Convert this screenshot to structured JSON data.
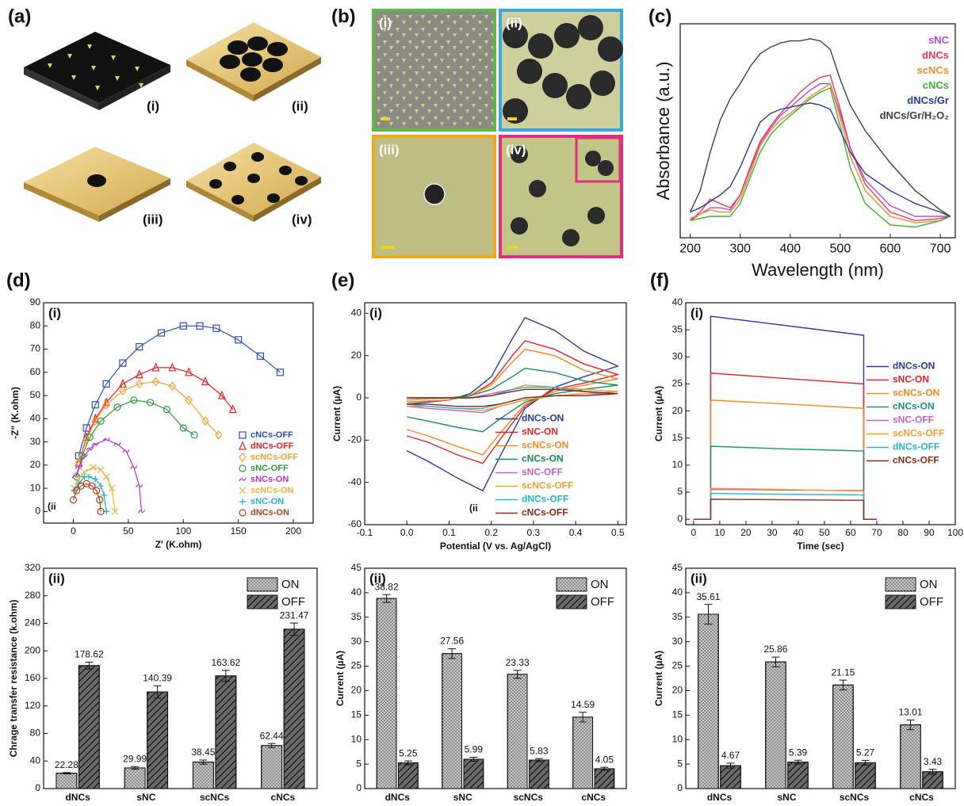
{
  "figure": {
    "a": {
      "label": "(a)",
      "items": [
        "(i)",
        "(ii)",
        "(iii)",
        "(iv)"
      ]
    },
    "b": {
      "label": "(b)",
      "items": [
        "(i)",
        "(ii)",
        "(iii)",
        "(iv)"
      ]
    }
  },
  "chart_data": [
    {
      "type": "line",
      "panel_label": "(c)",
      "xlabel": "Wavelength (nm)",
      "ylabel": "Absorbance (a.u.)",
      "x": [
        200,
        220,
        240,
        260,
        280,
        300,
        320,
        340,
        360,
        380,
        400,
        420,
        440,
        460,
        480,
        500,
        520,
        550,
        600,
        650,
        700,
        720
      ],
      "xlim": [
        180,
        730
      ],
      "xticks": [
        200,
        300,
        400,
        500,
        600,
        700
      ],
      "ylim": [
        0,
        1
      ],
      "legend": "upper right",
      "series": [
        {
          "name": "sNC",
          "color": "#b050c8",
          "values": [
            0.08,
            0.11,
            0.14,
            0.14,
            0.13,
            0.2,
            0.32,
            0.44,
            0.51,
            0.57,
            0.61,
            0.65,
            0.69,
            0.72,
            0.72,
            0.58,
            0.42,
            0.27,
            0.15,
            0.1,
            0.1,
            0.1
          ]
        },
        {
          "name": "dNCs",
          "color": "#f03a50",
          "values": [
            0.08,
            0.12,
            0.18,
            0.16,
            0.14,
            0.2,
            0.33,
            0.45,
            0.52,
            0.58,
            0.63,
            0.68,
            0.72,
            0.75,
            0.76,
            0.6,
            0.42,
            0.25,
            0.12,
            0.08,
            0.09,
            0.1
          ]
        },
        {
          "name": "scNCs",
          "color": "#f58a30",
          "values": [
            0.09,
            0.11,
            0.13,
            0.12,
            0.12,
            0.18,
            0.3,
            0.43,
            0.5,
            0.55,
            0.58,
            0.62,
            0.66,
            0.69,
            0.72,
            0.56,
            0.38,
            0.22,
            0.1,
            0.07,
            0.08,
            0.1
          ]
        },
        {
          "name": "cNCs",
          "color": "#40b030",
          "values": [
            0.08,
            0.09,
            0.1,
            0.1,
            0.1,
            0.16,
            0.28,
            0.4,
            0.48,
            0.53,
            0.57,
            0.61,
            0.65,
            0.68,
            0.7,
            0.52,
            0.33,
            0.16,
            0.06,
            0.05,
            0.08,
            0.1
          ]
        },
        {
          "name": "dNCs/Gr",
          "color": "#2a3aa0",
          "values": [
            0.12,
            0.14,
            0.17,
            0.2,
            0.24,
            0.33,
            0.44,
            0.54,
            0.58,
            0.6,
            0.61,
            0.62,
            0.63,
            0.62,
            0.6,
            0.5,
            0.4,
            0.3,
            0.22,
            0.16,
            0.12,
            0.1
          ]
        },
        {
          "name": "dNCs/Gr/H₂O₂",
          "color": "#404040",
          "values": [
            0.12,
            0.22,
            0.4,
            0.55,
            0.65,
            0.72,
            0.8,
            0.86,
            0.89,
            0.91,
            0.92,
            0.92,
            0.93,
            0.92,
            0.88,
            0.74,
            0.62,
            0.5,
            0.35,
            0.22,
            0.13,
            0.1
          ]
        }
      ]
    },
    {
      "type": "scatter",
      "panel_label": "(d)",
      "subpanel_label": "(i)",
      "annotation": "(ii",
      "xlabel": "Z' (K.ohm)",
      "ylabel": "-Z\" (K.ohm)",
      "xlim": [
        -27,
        218
      ],
      "xticks": [
        0,
        50,
        100,
        150,
        200
      ],
      "ylim": [
        -5,
        90
      ],
      "yticks": [
        0,
        10,
        20,
        30,
        40,
        50,
        60,
        70,
        80,
        90
      ],
      "legend": "lower right",
      "series": [
        {
          "name": "cNCs-OFF",
          "color": "#2e4bbd",
          "marker": "square",
          "x": [
            5,
            12,
            20,
            30,
            45,
            60,
            80,
            100,
            115,
            130,
            150,
            170,
            188
          ],
          "values": [
            24,
            36,
            46,
            55,
            64,
            71,
            77,
            80,
            80,
            79,
            74,
            67,
            60
          ]
        },
        {
          "name": "dNCs-OFF",
          "color": "#e8202a",
          "marker": "triangle",
          "x": [
            5,
            12,
            20,
            30,
            45,
            60,
            75,
            90,
            105,
            120,
            135,
            145
          ],
          "values": [
            21,
            32,
            40,
            47,
            55,
            59,
            62,
            62,
            60,
            56,
            50,
            44
          ]
        },
        {
          "name": "scNCs-OFF",
          "color": "#f5a030",
          "marker": "diamond",
          "x": [
            5,
            12,
            20,
            30,
            45,
            60,
            75,
            90,
            105,
            120,
            132
          ],
          "values": [
            21,
            31,
            39,
            46,
            52,
            55,
            56,
            54,
            48,
            39,
            33
          ]
        },
        {
          "name": "sNC-OFF",
          "color": "#2a9a3a",
          "marker": "circle",
          "x": [
            3,
            8,
            15,
            25,
            40,
            55,
            70,
            85,
            100,
            110
          ],
          "values": [
            15,
            24,
            32,
            39,
            45,
            48,
            47,
            44,
            36,
            33
          ]
        },
        {
          "name": "sNCs-ON",
          "color": "#c030c0",
          "marker": "cross",
          "x": [
            2,
            5,
            10,
            15,
            20,
            30,
            40,
            48,
            55,
            60,
            62
          ],
          "values": [
            15,
            19,
            24,
            27,
            29,
            31,
            29,
            26,
            19,
            11,
            0
          ]
        },
        {
          "name": "scNCs-ON",
          "color": "#f0b040",
          "marker": "x",
          "x": [
            1,
            5,
            10,
            18,
            25,
            30,
            35,
            38
          ],
          "values": [
            10,
            14,
            17,
            19,
            18,
            15,
            10,
            0
          ]
        },
        {
          "name": "sNC-ON",
          "color": "#20b0c8",
          "marker": "plus",
          "x": [
            1,
            5,
            10,
            14,
            20,
            25,
            28,
            30
          ],
          "values": [
            9,
            12,
            15,
            15,
            14,
            11,
            7,
            0
          ]
        },
        {
          "name": "dNCs-ON",
          "color": "#b04020",
          "marker": "circle",
          "x": [
            0,
            3,
            7,
            12,
            17,
            21,
            24,
            25
          ],
          "values": [
            5,
            9,
            11,
            12,
            11,
            9,
            5,
            0
          ]
        }
      ]
    },
    {
      "type": "bar",
      "subpanel_label": "(ii)",
      "ylabel": "Chrage transfer resistance (k.ohm)",
      "categories": [
        "dNCs",
        "sNC",
        "scNCs",
        "cNCs"
      ],
      "ylim": [
        0,
        320
      ],
      "yticks": [
        0,
        40,
        80,
        120,
        160,
        200,
        240,
        280,
        320
      ],
      "legend": "upper right",
      "series": [
        {
          "name": "ON",
          "color": "#c8c8c8",
          "pattern": "dots",
          "values": [
            22.28,
            29.99,
            38.45,
            62.44
          ],
          "errors": [
            1,
            2,
            3,
            3
          ]
        },
        {
          "name": "OFF",
          "color": "#6a6a6a",
          "pattern": "hatch",
          "values": [
            178.62,
            140.39,
            163.62,
            231.47
          ],
          "errors": [
            5,
            9,
            8,
            9
          ]
        }
      ]
    },
    {
      "type": "line",
      "panel_label": "(e)",
      "subpanel_label": "(i)",
      "annotation": "(ii",
      "xlabel": "Potential (V vs. Ag/AgCl)",
      "ylabel": "Current (µA)",
      "x": [
        0,
        0.1,
        0.15,
        0.2,
        0.25,
        0.28,
        0.35,
        0.42,
        0.5,
        0.42,
        0.35,
        0.28,
        0.22,
        0.18,
        0.12,
        0.05,
        0
      ],
      "xlim": [
        -0.1,
        0.52
      ],
      "xticks": [
        -0.1,
        {
          "value": 0,
          "label": "0.0"
        },
        0.1,
        0.2,
        0.3,
        0.4,
        0.5
      ],
      "ylim": [
        -60,
        45
      ],
      "yticks": [
        -60,
        -40,
        -20,
        0,
        20,
        40
      ],
      "legend": "lower right",
      "series": [
        {
          "name": "dNCs-ON",
          "color": "#2b3a9e",
          "values": [
            -3,
            -1,
            2,
            10,
            28,
            38,
            32,
            22,
            15,
            10,
            5,
            -5,
            -28,
            -44,
            -38,
            -30,
            -25
          ]
        },
        {
          "name": "sNC-ON",
          "color": "#e8202a",
          "values": [
            -2,
            -1,
            1,
            7,
            20,
            27,
            23,
            16,
            11,
            7,
            4,
            -4,
            -20,
            -31,
            -27,
            -21,
            -18
          ]
        },
        {
          "name": "scNCs-ON",
          "color": "#f28a1e",
          "values": [
            -2,
            -1,
            1,
            6,
            17,
            23,
            20,
            13,
            9,
            6,
            3,
            -3,
            -17,
            -27,
            -23,
            -18,
            -15
          ]
        },
        {
          "name": "cNCs-ON",
          "color": "#178a5a",
          "values": [
            -1,
            0,
            1,
            4,
            10,
            14,
            12,
            8,
            6,
            4,
            2,
            -2,
            -10,
            -16,
            -14,
            -11,
            -9
          ]
        },
        {
          "name": "sNC-OFF",
          "color": "#c25fd0",
          "values": [
            0,
            0,
            0,
            2,
            4,
            6,
            5,
            3,
            2,
            2,
            1,
            -1,
            -4,
            -7,
            -6,
            -5,
            -4
          ]
        },
        {
          "name": "scNCs-OFF",
          "color": "#f0a030",
          "values": [
            -1,
            0,
            0,
            1,
            4,
            6,
            5,
            4,
            3,
            2,
            1,
            -1,
            -4,
            -6,
            -5,
            -4,
            -4
          ]
        },
        {
          "name": "dNCs-OFF",
          "color": "#20b8c8",
          "values": [
            0,
            0,
            0,
            1,
            4,
            5,
            5,
            3,
            2,
            1,
            1,
            0,
            -3,
            -5,
            -5,
            -4,
            -3
          ]
        },
        {
          "name": "cNCs-OFF",
          "color": "#8b2a1a",
          "values": [
            0,
            0,
            0,
            1,
            3,
            4,
            4,
            3,
            2,
            1,
            1,
            0,
            -3,
            -4,
            -4,
            -3,
            -3
          ]
        }
      ]
    },
    {
      "type": "bar",
      "subpanel_label": "(ii)",
      "ylabel": "Current (µA)",
      "categories": [
        "dNCs",
        "sNC",
        "scNCs",
        "cNCs"
      ],
      "ylim": [
        0,
        45
      ],
      "yticks": [
        0,
        5,
        10,
        15,
        20,
        25,
        30,
        35,
        40,
        45
      ],
      "legend": "upper right",
      "series": [
        {
          "name": "ON",
          "color": "#c8c8c8",
          "pattern": "dots",
          "values": [
            38.82,
            27.56,
            23.33,
            14.59
          ],
          "errors": [
            0.8,
            1,
            0.8,
            1
          ]
        },
        {
          "name": "OFF",
          "color": "#6a6a6a",
          "pattern": "hatch",
          "values": [
            5.25,
            5.99,
            5.83,
            4.05
          ],
          "errors": [
            0.4,
            0.4,
            0.3,
            0.3
          ]
        }
      ]
    },
    {
      "type": "line",
      "panel_label": "(f)",
      "subpanel_label": "(i)",
      "xlabel": "Time (sec)",
      "ylabel": "Current (µA)",
      "x": [
        0,
        6.5,
        6.5,
        35,
        65,
        65,
        70
      ],
      "xlim": [
        -3,
        100
      ],
      "xticks": [
        0,
        10,
        20,
        30,
        40,
        50,
        60,
        70,
        80,
        90,
        100
      ],
      "ylim": [
        -1,
        40
      ],
      "yticks": [
        0,
        5,
        10,
        15,
        20,
        25,
        30,
        35,
        40
      ],
      "legend": "center right",
      "series": [
        {
          "name": "dNCs-ON",
          "color": "#2b3a9e",
          "values": [
            0,
            0,
            37.5,
            35.8,
            34,
            0,
            0
          ]
        },
        {
          "name": "sNC-ON",
          "color": "#e8202a",
          "values": [
            0,
            0,
            27,
            26,
            25,
            0,
            0
          ]
        },
        {
          "name": "scNCs-ON",
          "color": "#f28a1e",
          "values": [
            0,
            0,
            22,
            21.3,
            20.5,
            0,
            0
          ]
        },
        {
          "name": "cNCs-ON",
          "color": "#1e8f7a",
          "values": [
            0,
            0,
            13.5,
            13,
            12.6,
            0,
            0
          ]
        },
        {
          "name": "sNC-OFF",
          "color": "#c25fd0",
          "values": [
            0,
            0,
            5.5,
            5.4,
            5.3,
            0,
            0
          ]
        },
        {
          "name": "scNCs-OFF",
          "color": "#f0a030",
          "values": [
            0,
            0,
            5.7,
            5.5,
            5.2,
            0,
            0
          ]
        },
        {
          "name": "dNCs-OFF",
          "color": "#20b8c8",
          "values": [
            0,
            0,
            4.8,
            4.6,
            4.5,
            0,
            0
          ]
        },
        {
          "name": "cNCs-OFF",
          "color": "#8b2a1a",
          "values": [
            0,
            0,
            3.7,
            3.6,
            3.5,
            0,
            0
          ]
        }
      ]
    },
    {
      "type": "bar",
      "subpanel_label": "(ii)",
      "ylabel": "Current (µA)",
      "categories": [
        "dNCs",
        "sNC",
        "scNCs",
        "cNCs"
      ],
      "ylim": [
        0,
        45
      ],
      "yticks": [
        0,
        5,
        10,
        15,
        20,
        25,
        30,
        35,
        40,
        45
      ],
      "legend": "upper right",
      "series": [
        {
          "name": "ON",
          "color": "#c8c8c8",
          "pattern": "dots",
          "values": [
            35.61,
            25.86,
            21.15,
            13.01
          ],
          "errors": [
            2,
            1,
            1,
            1
          ]
        },
        {
          "name": "OFF",
          "color": "#6a6a6a",
          "pattern": "hatch",
          "values": [
            4.67,
            5.39,
            5.27,
            3.43
          ],
          "errors": [
            0.5,
            0.4,
            0.5,
            0.5
          ]
        }
      ]
    }
  ]
}
